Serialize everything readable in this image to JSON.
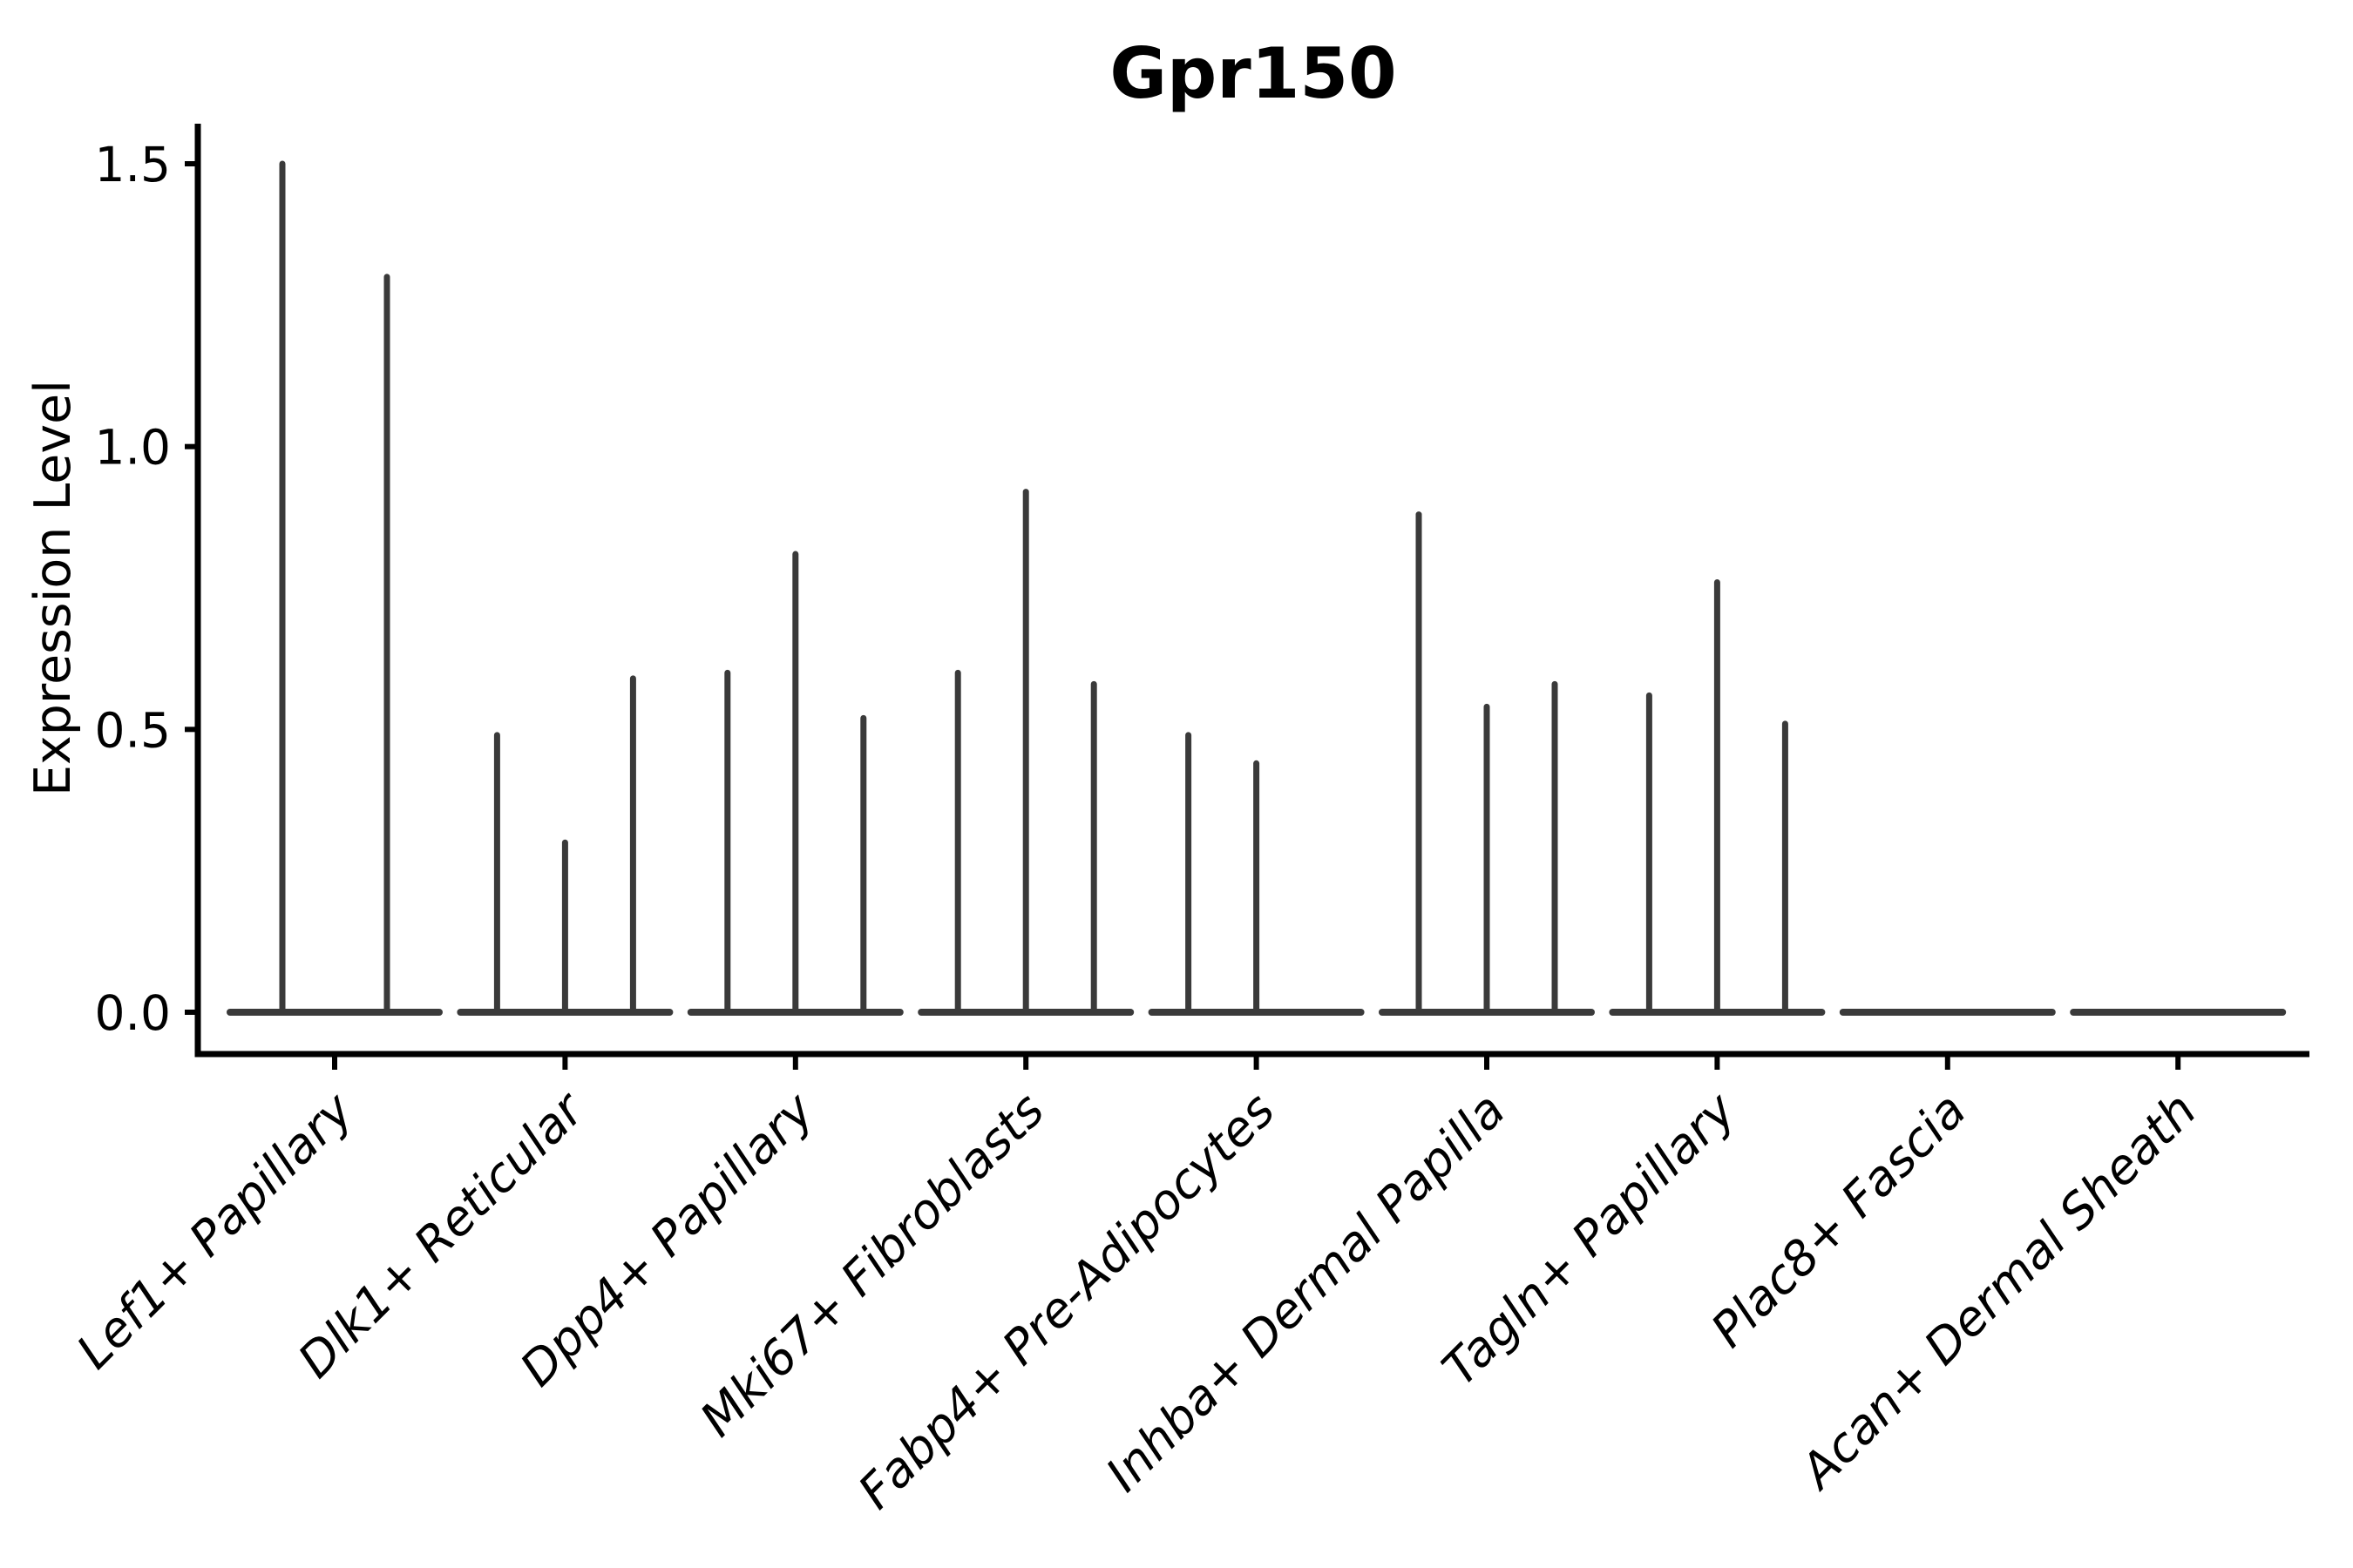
{
  "title": "Gpr150",
  "colors": {
    "background": "#ffffff",
    "axis": "#000000",
    "text": "#000000",
    "violin_stroke": "#3a3a3a"
  },
  "chart_data": {
    "type": "violin",
    "title": "Gpr150",
    "xlabel": "",
    "ylabel": "Expression Level",
    "ylim": [
      0.0,
      1.5
    ],
    "yticks": [
      0.0,
      0.5,
      1.0,
      1.5
    ],
    "grid": false,
    "legend": "none",
    "x_tick_rotation_deg": 45,
    "x_tick_style": "italic",
    "categories": [
      "Lef1+ Papillary",
      "Dlk1+ Reticular",
      "Dpp4+ Papillary",
      "Mki67+ Fibroblasts",
      "Fabp4+ Pre-Adipocytes",
      "Inhba+ Dermal Papilla",
      "Tagln+ Papillary",
      "Plac8+ Fascia",
      "Acan+ Dermal Sheath"
    ],
    "series": [
      {
        "category": "Lef1+ Papillary",
        "violin_maxima": [
          1.5,
          1.3
        ]
      },
      {
        "category": "Dlk1+ Reticular",
        "violin_maxima": [
          0.49,
          0.3,
          0.59
        ]
      },
      {
        "category": "Dpp4+ Papillary",
        "violin_maxima": [
          0.6,
          0.81,
          0.52
        ]
      },
      {
        "category": "Mki67+ Fibroblasts",
        "violin_maxima": [
          0.6,
          0.92,
          0.58
        ]
      },
      {
        "category": "Fabp4+ Pre-Adipocytes",
        "violin_maxima": [
          0.49,
          0.44,
          0.0
        ]
      },
      {
        "category": "Inhba+ Dermal Papilla",
        "violin_maxima": [
          0.88,
          0.54,
          0.58
        ]
      },
      {
        "category": "Tagln+ Papillary",
        "violin_maxima": [
          0.56,
          0.76,
          0.51
        ]
      },
      {
        "category": "Plac8+ Fascia",
        "violin_maxima": [
          0.0,
          0.0,
          0.0
        ]
      },
      {
        "category": "Acan+ Dermal Sheath",
        "violin_maxima": [
          0.0,
          0.0,
          0.0
        ]
      }
    ]
  }
}
